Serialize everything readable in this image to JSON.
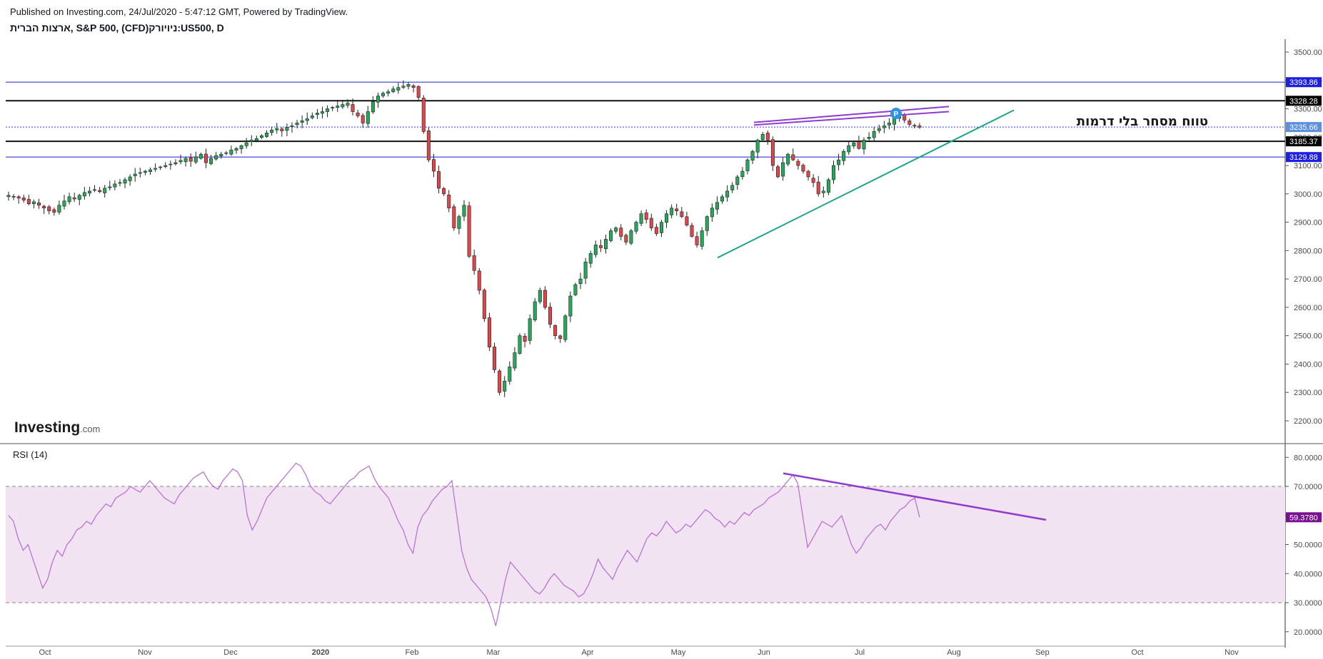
{
  "header": {
    "published": "Published on Investing.com, 24/Jul/2020 - 5:47:12 GMT, Powered by TradingView.",
    "symbol": "ארצות הברית, S&P 500, (CFD)ניויורק:US500, D"
  },
  "branding": {
    "logo_main": "Investing",
    "logo_suffix": ".com"
  },
  "annotation_text": "טווח מסחר בלי דרמות",
  "rsi_label": "RSI (14)",
  "colors": {
    "up": "#26a85a",
    "down": "#e0454a",
    "blue_line": "#2f3cd8",
    "black_line": "#111111",
    "green_trend": "#1aa58a",
    "purple_trend": "#8f3bd0",
    "rsi_line": "#b76ad6",
    "rsi_band": "#f1e3f1"
  },
  "chart_data": [
    {
      "type": "candlestick",
      "title": "ארצות הברית, S&P 500, (CFD)ניויורק:US500, D",
      "ylim": [
        2140,
        3550
      ],
      "y_ticks": [
        "3500.00",
        "3400.00",
        "3300.00",
        "3200.00",
        "3100.00",
        "3000.00",
        "2900.00",
        "2800.00",
        "2700.00",
        "2600.00",
        "2500.00",
        "2400.00",
        "2300.00",
        "2200.00"
      ],
      "x_ticks": [
        "Oct",
        "Nov",
        "Dec",
        "2020",
        "Feb",
        "Mar",
        "Apr",
        "May",
        "Jun",
        "Jul",
        "Aug",
        "Sep",
        "Oct",
        "Nov"
      ],
      "horizontal_levels": [
        {
          "value": 3393.86,
          "label": "3393.86",
          "color": "blue"
        },
        {
          "value": 3328.28,
          "label": "3328.28",
          "color": "black"
        },
        {
          "value": 3235.66,
          "label": "3235.66",
          "color": "blue",
          "style": "dotted",
          "tag_color": "lightblue"
        },
        {
          "value": 3185.37,
          "label": "3185.37",
          "color": "black"
        },
        {
          "value": 3129.88,
          "label": "3129.88",
          "color": "blue"
        }
      ],
      "close_series": [
        2995,
        2990,
        2985,
        2978,
        2965,
        2972,
        2960,
        2950,
        2940,
        2935,
        2960,
        2975,
        2990,
        2982,
        2995,
        3005,
        3010,
        3015,
        3008,
        3020,
        3025,
        3035,
        3040,
        3050,
        3060,
        3070,
        3075,
        3080,
        3085,
        3090,
        3095,
        3100,
        3105,
        3110,
        3118,
        3125,
        3115,
        3130,
        3140,
        3110,
        3125,
        3135,
        3140,
        3145,
        3155,
        3160,
        3170,
        3180,
        3190,
        3195,
        3205,
        3215,
        3225,
        3230,
        3222,
        3235,
        3240,
        3250,
        3258,
        3265,
        3275,
        3285,
        3290,
        3300,
        3305,
        3310,
        3315,
        3320,
        3290,
        3275,
        3250,
        3290,
        3325,
        3345,
        3355,
        3360,
        3370,
        3375,
        3380,
        3386,
        3375,
        3340,
        3220,
        3120,
        3080,
        3020,
        3000,
        2950,
        2880,
        2920,
        2960,
        2780,
        2730,
        2660,
        2560,
        2460,
        2380,
        2300,
        2340,
        2390,
        2440,
        2500,
        2480,
        2560,
        2620,
        2660,
        2600,
        2540,
        2500,
        2490,
        2570,
        2640,
        2680,
        2700,
        2760,
        2790,
        2820,
        2810,
        2840,
        2870,
        2880,
        2850,
        2830,
        2870,
        2900,
        2930,
        2910,
        2880,
        2860,
        2900,
        2930,
        2950,
        2940,
        2920,
        2890,
        2850,
        2820,
        2870,
        2920,
        2950,
        2970,
        2990,
        3010,
        3030,
        3060,
        3080,
        3120,
        3150,
        3190,
        3210,
        3190,
        3100,
        3060,
        3110,
        3140,
        3120,
        3100,
        3080,
        3060,
        3040,
        3000,
        3010,
        3050,
        3100,
        3120,
        3150,
        3170,
        3180,
        3160,
        3190,
        3200,
        3220,
        3230,
        3240,
        3250,
        3270,
        3280,
        3260,
        3245,
        3240,
        3235
      ],
      "trend_lines": [
        {
          "name": "green support",
          "from": [
            "May",
            2775
          ],
          "to": [
            "Aug",
            3295
          ]
        },
        {
          "name": "purple upper channel",
          "from": [
            "Jun",
            3252
          ],
          "to": [
            "Jul",
            3308
          ]
        },
        {
          "name": "purple lower channel",
          "from": [
            "Jun",
            3243
          ],
          "to": [
            "Jul",
            3290
          ]
        }
      ]
    },
    {
      "type": "line",
      "title": "RSI (14)",
      "ylim": [
        15,
        86
      ],
      "y_ticks": [
        "80.0000",
        "70.0000",
        "60.0000",
        "50.0000",
        "40.0000",
        "30.0000",
        "20.0000"
      ],
      "band": [
        30,
        70
      ],
      "last_value": "59.3780",
      "values": [
        60,
        58,
        52,
        48,
        50,
        45,
        40,
        35,
        38,
        44,
        48,
        46,
        50,
        52,
        55,
        56,
        58,
        57,
        60,
        62,
        64,
        63,
        66,
        67,
        68,
        70,
        69,
        68,
        70,
        72,
        70,
        68,
        66,
        65,
        64,
        67,
        69,
        71,
        73,
        74,
        75,
        72,
        70,
        69,
        72,
        74,
        76,
        75,
        72,
        60,
        55,
        58,
        62,
        66,
        68,
        70,
        72,
        74,
        76,
        78,
        77,
        74,
        70,
        68,
        67,
        65,
        64,
        66,
        68,
        70,
        72,
        73,
        75,
        76,
        77,
        73,
        70,
        68,
        66,
        62,
        58,
        55,
        50,
        47,
        56,
        60,
        62,
        65,
        67,
        69,
        70,
        72,
        60,
        48,
        42,
        38,
        36,
        34,
        32,
        28,
        22,
        30,
        38,
        44,
        42,
        40,
        38,
        36,
        34,
        33,
        35,
        38,
        40,
        38,
        36,
        35,
        34,
        32,
        33,
        36,
        40,
        45,
        42,
        40,
        38,
        42,
        45,
        48,
        46,
        44,
        48,
        52,
        54,
        53,
        55,
        58,
        56,
        54,
        55,
        57,
        56,
        58,
        60,
        62,
        61,
        59,
        58,
        56,
        58,
        57,
        59,
        61,
        60,
        62,
        63,
        64,
        66,
        67,
        68,
        70,
        72,
        74,
        71,
        60,
        49,
        52,
        55,
        58,
        57,
        56,
        58,
        60,
        55,
        50,
        47,
        49,
        52,
        54,
        56,
        57,
        55,
        58,
        60,
        62,
        63,
        65,
        66,
        59.378
      ],
      "trend_line": {
        "from": [
          "Jun",
          74.5
        ],
        "to": [
          "Sep",
          58.5
        ]
      }
    }
  ]
}
